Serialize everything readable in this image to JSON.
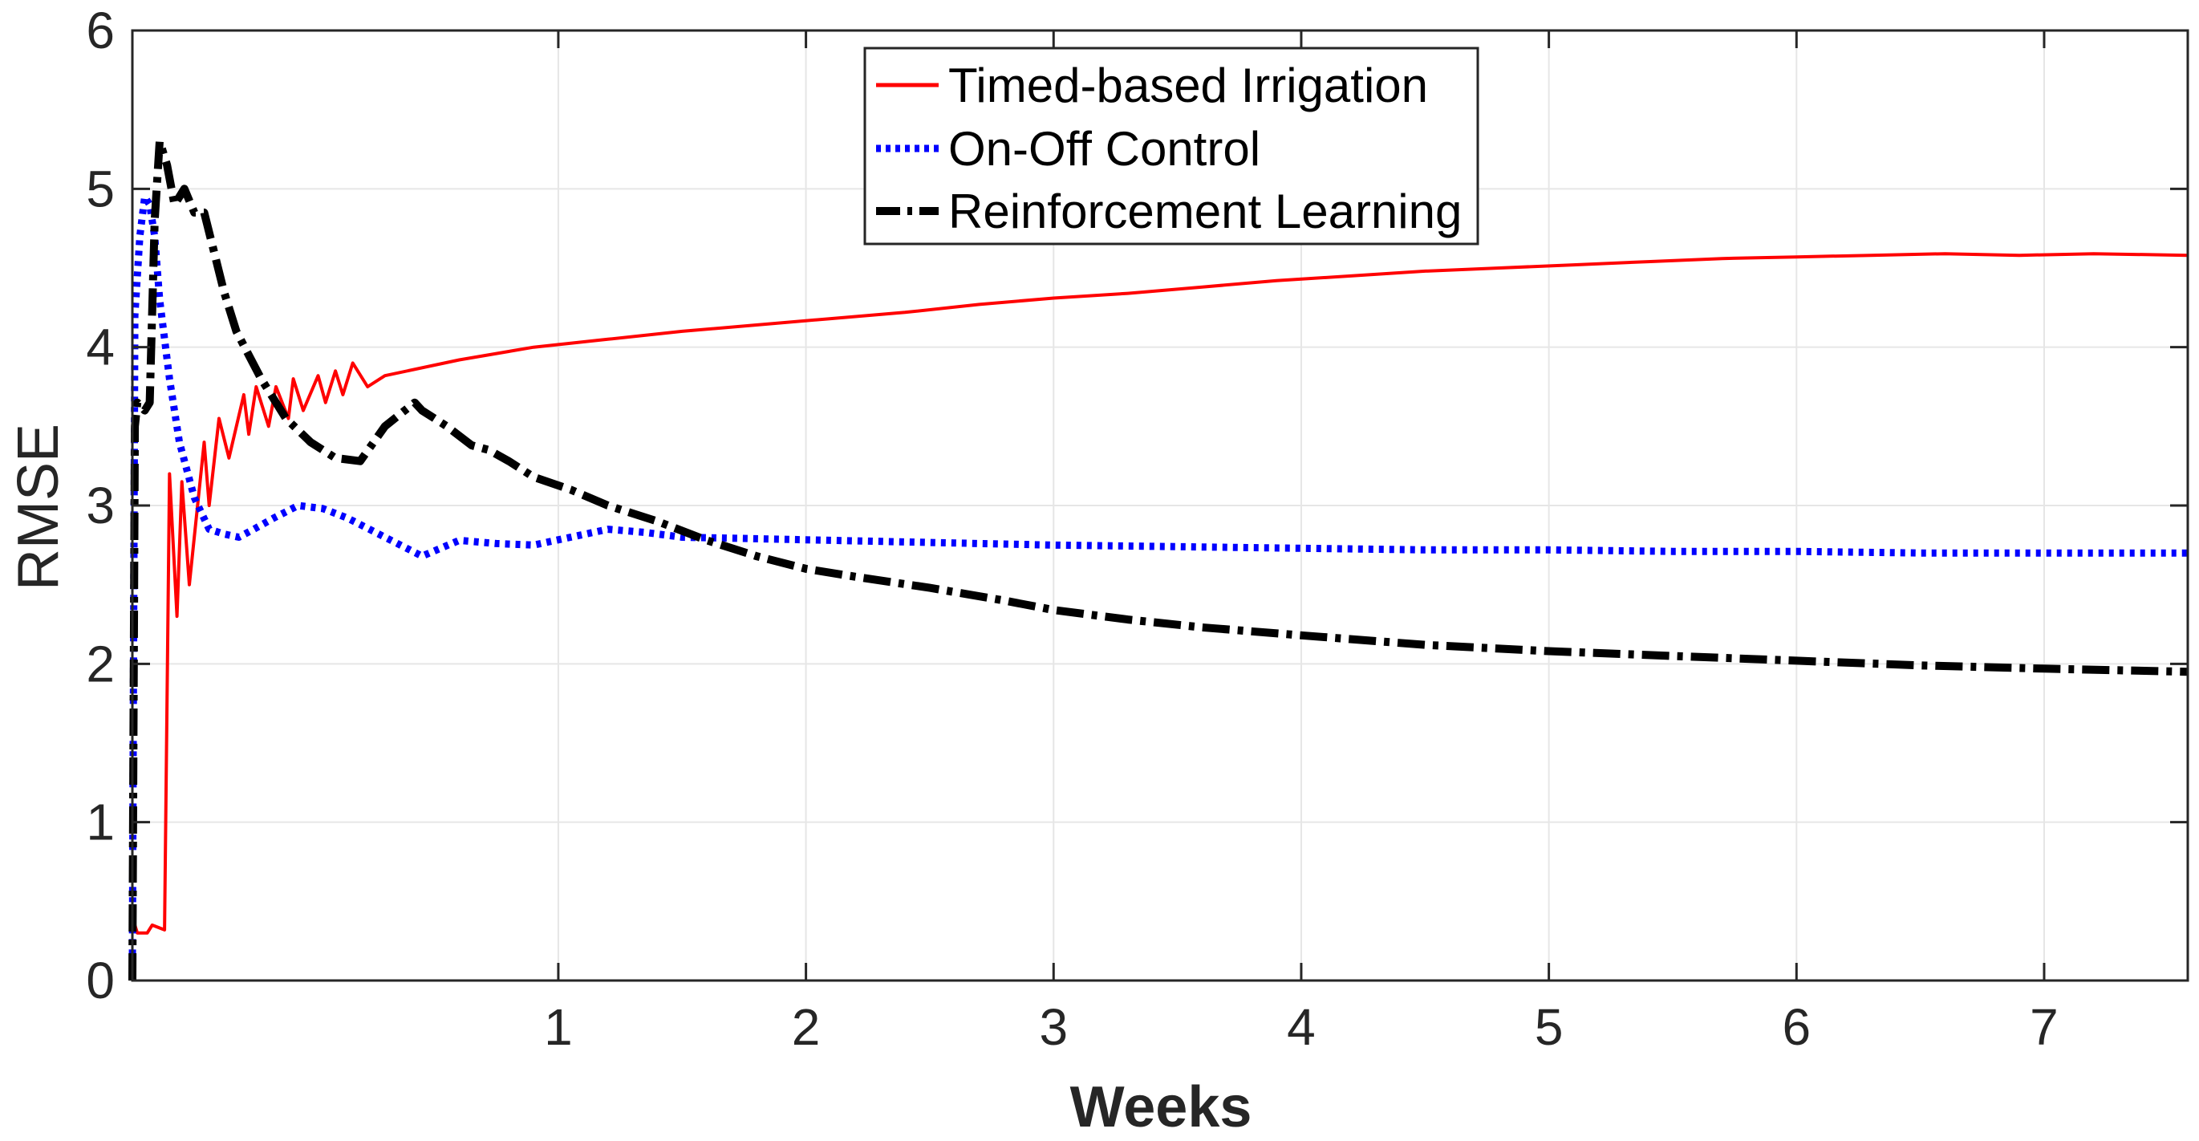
{
  "chart_data": {
    "type": "line",
    "title": "",
    "xlabel": "Weeks",
    "ylabel": "RMSE",
    "xlim": [
      -0.72,
      7.58
    ],
    "ylim": [
      0,
      6
    ],
    "grid": true,
    "legend_position": "top-center",
    "x_ticks": [
      1,
      2,
      3,
      4,
      5,
      6,
      7
    ],
    "x_tick_labels": [
      "1",
      "2",
      "3",
      "4",
      "5",
      "6",
      "7"
    ],
    "y_ticks": [
      0,
      1,
      2,
      3,
      4,
      5,
      6
    ],
    "y_tick_labels": [
      "0",
      "1",
      "2",
      "3",
      "4",
      "5",
      "6"
    ],
    "series": [
      {
        "name": "Timed-based Irrigation",
        "color": "#ff0000",
        "style": "solid",
        "x": [
          -0.72,
          -0.7,
          -0.66,
          -0.64,
          -0.59,
          -0.57,
          -0.54,
          -0.52,
          -0.49,
          -0.43,
          -0.41,
          -0.37,
          -0.33,
          -0.27,
          -0.25,
          -0.22,
          -0.17,
          -0.14,
          -0.09,
          -0.07,
          -0.03,
          0.03,
          0.06,
          0.1,
          0.13,
          0.17,
          0.23,
          0.3,
          0.6,
          0.9,
          1.2,
          1.5,
          1.8,
          2.1,
          2.4,
          2.7,
          3.0,
          3.3,
          3.6,
          3.9,
          4.2,
          4.5,
          4.8,
          5.1,
          5.4,
          5.7,
          6.0,
          6.3,
          6.6,
          6.9,
          7.2,
          7.58
        ],
        "y": [
          0.4,
          0.3,
          0.3,
          0.35,
          0.32,
          3.2,
          2.3,
          3.15,
          2.5,
          3.4,
          3.0,
          3.55,
          3.3,
          3.7,
          3.45,
          3.75,
          3.5,
          3.75,
          3.55,
          3.8,
          3.6,
          3.82,
          3.65,
          3.85,
          3.7,
          3.9,
          3.75,
          3.82,
          3.92,
          4.0,
          4.05,
          4.1,
          4.14,
          4.18,
          4.22,
          4.27,
          4.31,
          4.34,
          4.38,
          4.42,
          4.45,
          4.48,
          4.5,
          4.52,
          4.54,
          4.56,
          4.57,
          4.58,
          4.59,
          4.58,
          4.59,
          4.58
        ]
      },
      {
        "name": "On-Off Control",
        "color": "#0000ff",
        "style": "dotted",
        "x": [
          -0.72,
          -0.71,
          -0.69,
          -0.67,
          -0.65,
          -0.63,
          -0.61,
          -0.57,
          -0.53,
          -0.47,
          -0.41,
          -0.35,
          -0.29,
          -0.23,
          -0.15,
          -0.05,
          0.05,
          0.15,
          0.3,
          0.45,
          0.6,
          0.75,
          0.9,
          1.05,
          1.2,
          1.35,
          1.5,
          1.8,
          2.1,
          2.4,
          2.7,
          3.0,
          3.5,
          4.0,
          4.5,
          5.0,
          5.5,
          6.0,
          6.5,
          7.0,
          7.58
        ],
        "y": [
          0.1,
          4.2,
          4.7,
          4.95,
          4.9,
          4.7,
          4.3,
          3.8,
          3.4,
          3.05,
          2.85,
          2.82,
          2.8,
          2.85,
          2.92,
          3.0,
          2.98,
          2.92,
          2.8,
          2.68,
          2.78,
          2.76,
          2.75,
          2.8,
          2.85,
          2.83,
          2.8,
          2.79,
          2.78,
          2.77,
          2.76,
          2.75,
          2.74,
          2.73,
          2.72,
          2.72,
          2.71,
          2.71,
          2.7,
          2.7,
          2.7
        ]
      },
      {
        "name": "Reinforcement Learning",
        "color": "#000000",
        "style": "dash-dot",
        "x": [
          -0.72,
          -0.71,
          -0.7,
          -0.67,
          -0.65,
          -0.63,
          -0.61,
          -0.58,
          -0.55,
          -0.51,
          -0.47,
          -0.43,
          -0.39,
          -0.35,
          -0.3,
          -0.2,
          -0.1,
          0.0,
          0.1,
          0.2,
          0.3,
          0.42,
          0.45,
          0.55,
          0.65,
          0.72,
          0.8,
          0.9,
          1.05,
          1.2,
          1.4,
          1.6,
          1.8,
          2.0,
          2.2,
          2.5,
          2.8,
          3.0,
          3.3,
          3.6,
          4.0,
          4.5,
          5.0,
          5.5,
          6.0,
          6.5,
          7.0,
          7.58
        ],
        "y": [
          0.0,
          3.5,
          3.65,
          3.6,
          3.65,
          4.8,
          5.3,
          5.15,
          4.9,
          5.0,
          4.85,
          4.85,
          4.6,
          4.35,
          4.1,
          3.8,
          3.55,
          3.4,
          3.3,
          3.28,
          3.5,
          3.65,
          3.6,
          3.5,
          3.38,
          3.35,
          3.28,
          3.18,
          3.1,
          3.0,
          2.9,
          2.78,
          2.68,
          2.6,
          2.55,
          2.48,
          2.4,
          2.34,
          2.28,
          2.23,
          2.18,
          2.12,
          2.08,
          2.05,
          2.02,
          1.99,
          1.97,
          1.95
        ]
      }
    ]
  }
}
